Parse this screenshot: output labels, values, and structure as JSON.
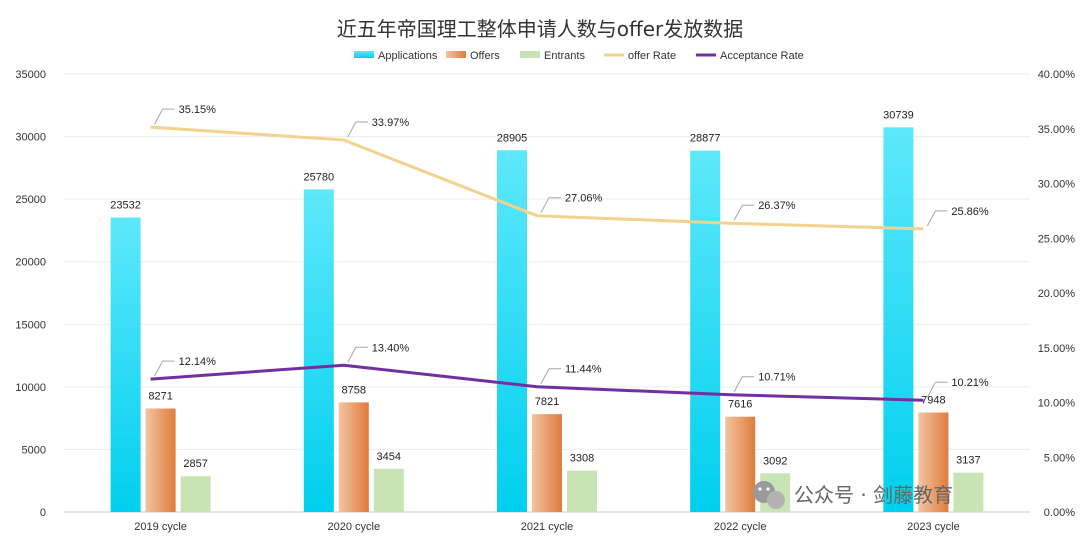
{
  "chart_data": {
    "type": "bar",
    "title": "近五年帝国理工整体申请人数与offer发放数据",
    "categories": [
      "2019 cycle",
      "2020 cycle",
      "2021 cycle",
      "2022 cycle",
      "2023 cycle"
    ],
    "y_left_lim": [
      0,
      35000
    ],
    "y_left_ticks": [
      "0",
      "5000",
      "10000",
      "15000",
      "20000",
      "25000",
      "30000",
      "35000"
    ],
    "y_right_lim": [
      0,
      40
    ],
    "y_right_ticks": [
      "0.00%",
      "5.00%",
      "10.00%",
      "15.00%",
      "20.00%",
      "25.00%",
      "30.00%",
      "35.00%",
      "40.00%"
    ],
    "legend_position": "top-center",
    "grid": true,
    "series": [
      {
        "name": "Applications",
        "kind": "bar",
        "axis": "left",
        "values": [
          23532,
          25780,
          28905,
          28877,
          30739
        ],
        "labels": [
          "23532",
          "25780",
          "28905",
          "28877",
          "30739"
        ],
        "color_top": "#5ee8fb",
        "color_bottom": "#00cfee"
      },
      {
        "name": "Offers",
        "kind": "bar",
        "axis": "left",
        "values": [
          8271,
          8758,
          7821,
          7616,
          7948
        ],
        "labels": [
          "8271",
          "8758",
          "7821",
          "7616",
          "7948"
        ],
        "color_left": "#f2c4a2",
        "color_right": "#df7c3c"
      },
      {
        "name": "Entrants",
        "kind": "bar",
        "axis": "left",
        "values": [
          2857,
          3454,
          3308,
          3092,
          3137
        ],
        "labels": [
          "2857",
          "3454",
          "3308",
          "3092",
          "3137"
        ],
        "color": "#c8e4b4"
      },
      {
        "name": "offer Rate",
        "kind": "line",
        "axis": "right",
        "values": [
          35.15,
          33.97,
          27.06,
          26.37,
          25.86
        ],
        "labels": [
          "35.15%",
          "33.97%",
          "27.06%",
          "26.37%",
          "25.86%"
        ],
        "color": "#f2d28e"
      },
      {
        "name": "Acceptance Rate",
        "kind": "line",
        "axis": "right",
        "values": [
          12.14,
          13.4,
          11.44,
          10.71,
          10.21
        ],
        "labels": [
          "12.14%",
          "13.40%",
          "11.44%",
          "10.71%",
          "10.21%"
        ],
        "color": "#7030a0"
      }
    ]
  },
  "watermark": {
    "text": "公众号 · 剑藤教育",
    "icon": "wechat-icon"
  }
}
